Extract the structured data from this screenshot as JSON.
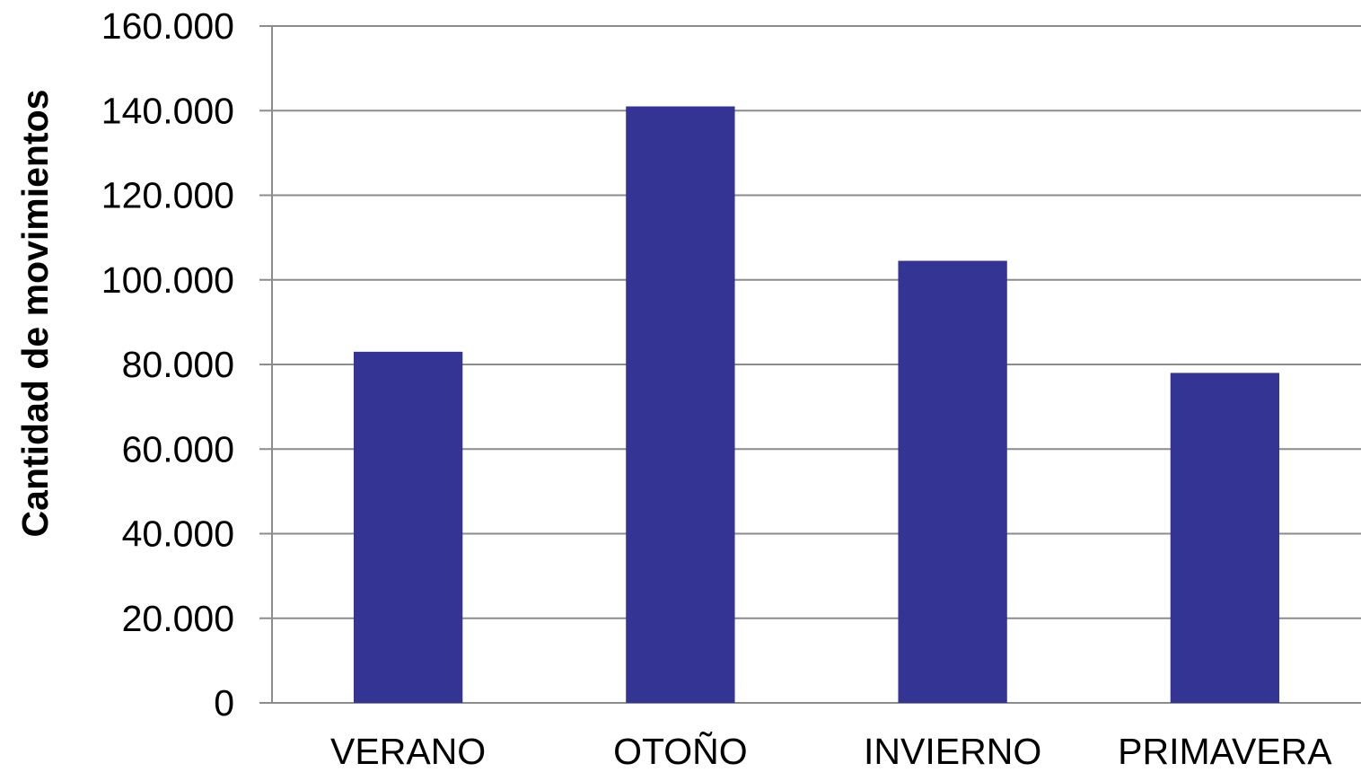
{
  "chart_data": {
    "type": "bar",
    "title": "",
    "xlabel": "",
    "ylabel": "Cantidad de movimientos",
    "categories": [
      "VERANO",
      "OTOÑO",
      "INVIERNO",
      "PRIMAVERA"
    ],
    "values": [
      83000,
      141000,
      104500,
      78000
    ],
    "ylim": [
      0,
      160000
    ],
    "yticks": [
      0,
      20000,
      40000,
      60000,
      80000,
      100000,
      120000,
      140000,
      160000
    ],
    "ytick_labels": [
      "0",
      "20.000",
      "40.000",
      "60.000",
      "80.000",
      "100.000",
      "120.000",
      "140.000",
      "160.000"
    ],
    "grid": true,
    "legend": "none",
    "bar_color": "#343495",
    "grid_color": "#8c8c8c",
    "axis_color": "#8c8c8c"
  }
}
